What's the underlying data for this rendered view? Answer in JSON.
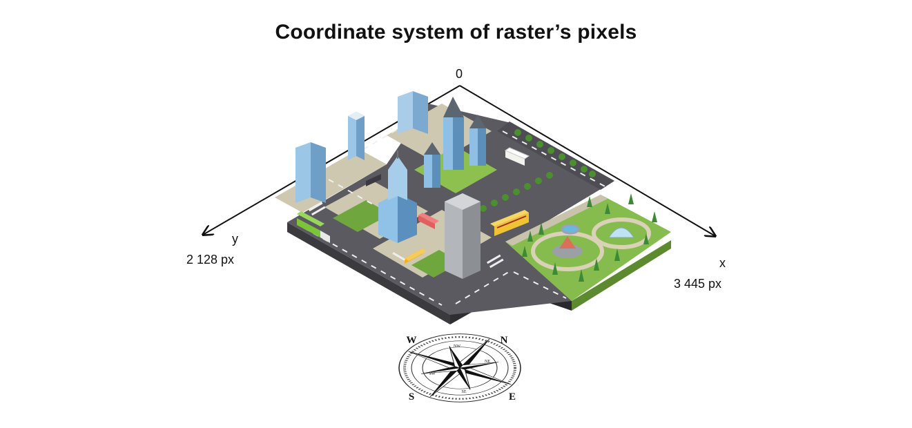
{
  "diagram": {
    "title": "Coordinate system of raster’s pixels",
    "origin_label": "0",
    "x_axis": {
      "label": "x",
      "size": "3 445 px"
    },
    "y_axis": {
      "label": "y",
      "size": "2 128 px"
    },
    "compass_letters": [
      "N",
      "E",
      "S",
      "W"
    ],
    "compass_inner_letters": [
      "NW",
      "NE",
      "SE",
      "SW"
    ]
  },
  "colors": {
    "road": "#56565c",
    "road_edge": "#3d3d42",
    "sidewalk": "#c9c3ae",
    "grass": "#84b84a",
    "building_blue": "#8fbfe4",
    "building_gray": "#a8abb0",
    "tree": "#3f8f3a",
    "axis": "#111111"
  }
}
